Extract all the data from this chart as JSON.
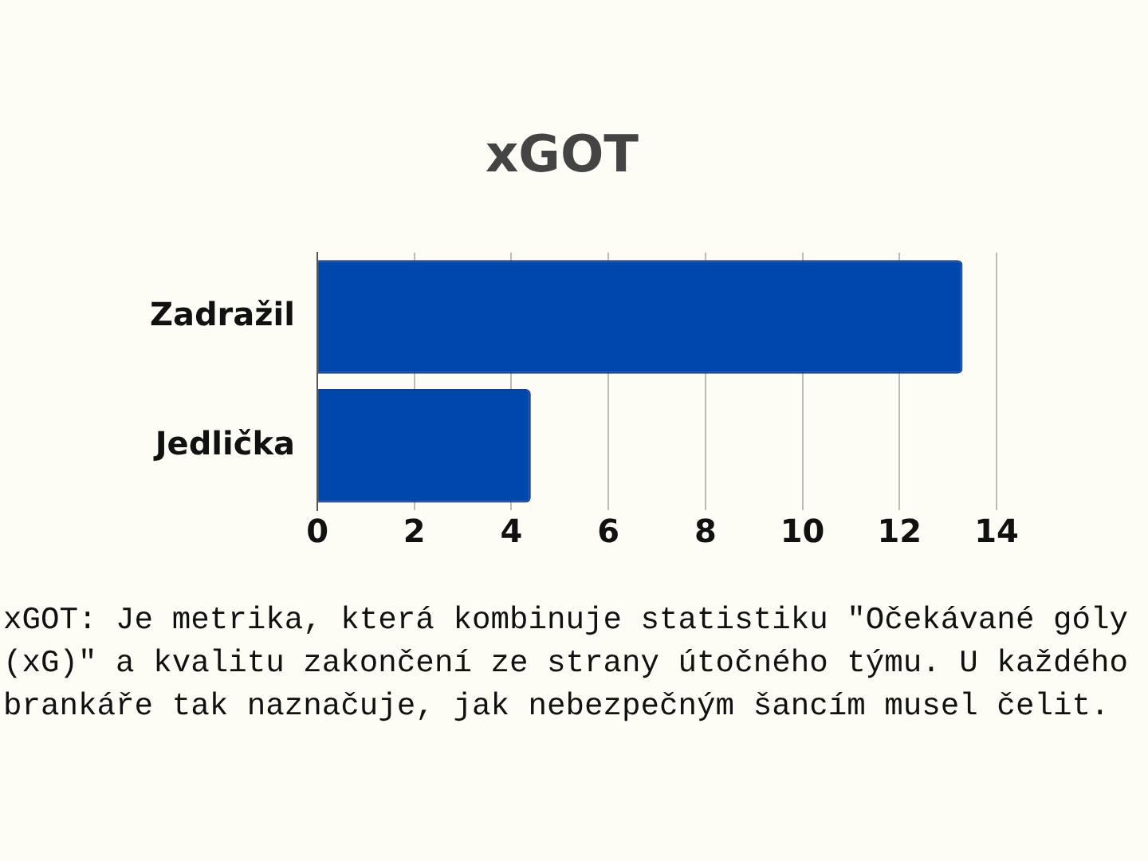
{
  "chart_data": {
    "type": "bar",
    "orientation": "horizontal",
    "title": "xGOT",
    "categories": [
      "Zadražil",
      "Jedlička"
    ],
    "values": [
      13.3,
      4.4
    ],
    "color": "#0047ab",
    "xlim": [
      0,
      14
    ],
    "xticks": [
      0,
      2,
      4,
      6,
      8,
      10,
      12,
      14
    ],
    "grid": "x",
    "annotations": [
      "xGOT: Je metrika, která kombinuje statistiku \"Očekávané góly (xG)\" a kvalitu zakončení ze strany útočného týmu. U každého brankáře tak naznačuje, jak nebezpečným šancím musel čelit."
    ]
  }
}
